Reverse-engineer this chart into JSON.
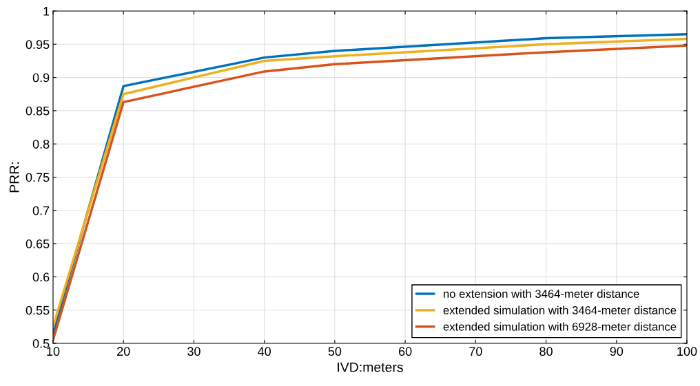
{
  "chart_data": {
    "type": "line",
    "xlabel": "IVD:meters",
    "ylabel": "PRR:",
    "x": [
      10,
      20,
      40,
      50,
      80,
      100
    ],
    "series": [
      {
        "name": "no extension with 3464-meter distance",
        "color": "#0072bd",
        "values": [
          0.515,
          0.887,
          0.93,
          0.94,
          0.959,
          0.965
        ]
      },
      {
        "name": "extended simulation with 3464-meter distance",
        "color": "#edb120",
        "values": [
          0.525,
          0.875,
          0.925,
          0.932,
          0.95,
          0.958
        ]
      },
      {
        "name": "extended simulation with 6928-meter distance",
        "color": "#d95319",
        "values": [
          0.505,
          0.863,
          0.909,
          0.92,
          0.938,
          0.948
        ]
      }
    ],
    "xlim": [
      10,
      100
    ],
    "xticks": [
      10,
      20,
      30,
      40,
      50,
      60,
      70,
      80,
      90,
      100
    ],
    "ylim": [
      0.5,
      1
    ],
    "yticks": [
      0.5,
      0.55,
      0.6,
      0.65,
      0.7,
      0.75,
      0.8,
      0.85,
      0.9,
      0.95,
      1
    ],
    "grid": true,
    "legend": "bottom right",
    "marker": "none",
    "line_style": "solid"
  }
}
